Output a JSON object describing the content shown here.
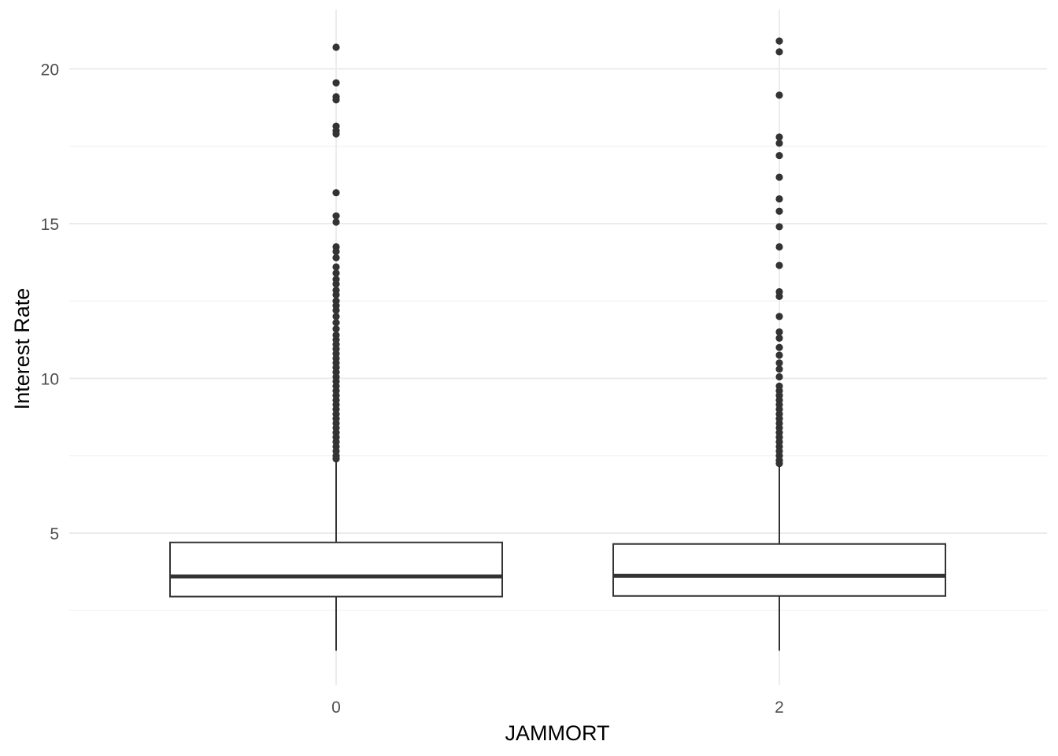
{
  "chart_data": {
    "type": "boxplot",
    "xlabel": "JAMMORT",
    "ylabel": "Interest Rate",
    "categories": [
      "0",
      "2"
    ],
    "y_ticks": [
      5,
      10,
      15,
      20
    ],
    "ylim": [
      0.1,
      21.4
    ],
    "grid": true,
    "colors": {
      "box_stroke": "#333333",
      "grid": "#ebebeb",
      "text": "#4d4d4d"
    },
    "boxes": [
      {
        "category": "0",
        "lower_whisker": 1.2,
        "q1": 2.95,
        "median": 3.6,
        "q3": 4.7,
        "upper_whisker": 7.35,
        "outliers": [
          20.7,
          19.55,
          19.1,
          19.0,
          18.15,
          18.0,
          17.9,
          16.0,
          15.25,
          15.05,
          14.25,
          14.1,
          13.9,
          13.6,
          13.4,
          13.2,
          13.05,
          12.85,
          12.7,
          12.5,
          12.35,
          12.2,
          12.0,
          11.8,
          11.6,
          11.4,
          11.25,
          11.1,
          10.95,
          10.8,
          10.65,
          10.5,
          10.35,
          10.2,
          10.05,
          9.9,
          9.75,
          9.6,
          9.45,
          9.3,
          9.15,
          9.0,
          8.85,
          8.7,
          8.55,
          8.4,
          8.25,
          8.1,
          7.95,
          7.8,
          7.65,
          7.5,
          7.4
        ]
      },
      {
        "category": "2",
        "lower_whisker": 1.2,
        "q1": 2.97,
        "median": 3.62,
        "q3": 4.65,
        "upper_whisker": 7.15,
        "outliers": [
          20.9,
          20.55,
          19.15,
          17.8,
          17.6,
          17.2,
          16.5,
          15.8,
          15.4,
          14.9,
          14.25,
          13.65,
          12.8,
          12.65,
          12.0,
          11.5,
          11.3,
          11.0,
          10.75,
          10.5,
          10.3,
          10.05,
          9.75,
          9.6,
          9.45,
          9.3,
          9.15,
          9.0,
          8.85,
          8.7,
          8.55,
          8.4,
          8.25,
          8.1,
          7.95,
          7.8,
          7.65,
          7.5,
          7.35,
          7.25
        ]
      }
    ]
  }
}
